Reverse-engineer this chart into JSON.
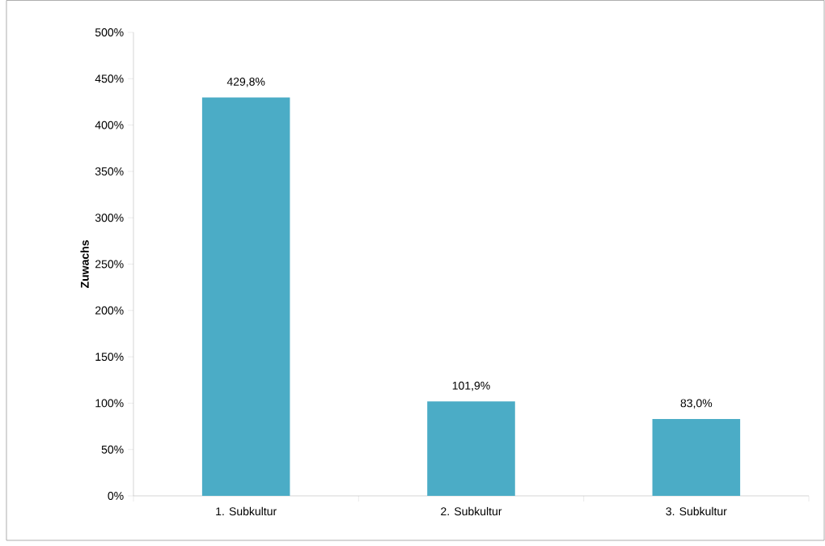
{
  "chart_data": {
    "type": "bar",
    "ylabel": "Zuwachs",
    "categories": [
      "1. Subkultur",
      "2. Subkultur",
      "3. Subkultur"
    ],
    "values": [
      429.8,
      101.9,
      83.0
    ],
    "value_labels": [
      "429,8%",
      "101,9%",
      "83,0%"
    ],
    "color": "#4bacc6",
    "ylim": [
      0,
      500
    ],
    "yticks": [
      {
        "value": 0,
        "label": "0%"
      },
      {
        "value": 50,
        "label": "50%"
      },
      {
        "value": 100,
        "label": "100%"
      },
      {
        "value": 150,
        "label": "150%"
      },
      {
        "value": 200,
        "label": "200%"
      },
      {
        "value": 250,
        "label": "250%"
      },
      {
        "value": 300,
        "label": "300%"
      },
      {
        "value": 350,
        "label": "350%"
      },
      {
        "value": 400,
        "label": "400%"
      },
      {
        "value": 450,
        "label": "450%"
      },
      {
        "value": 500,
        "label": "500%"
      }
    ]
  }
}
